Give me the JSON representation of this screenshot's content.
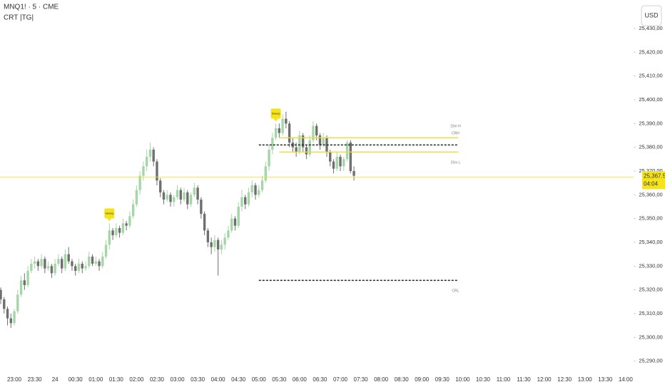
{
  "chart_data": {
    "type": "candlestick",
    "title": "MNQ1! · 5 · CME",
    "indicator": "CRT |TG|",
    "currency_button": "USD",
    "categories": [
      null,
      null,
      null,
      null,
      "23:00",
      null,
      null,
      null,
      null,
      null,
      "23:30",
      null,
      null,
      null,
      null,
      null,
      "24",
      null,
      null,
      null,
      null,
      null,
      "00:30",
      null,
      null,
      null,
      null,
      null,
      "01:00",
      null,
      null,
      null,
      null,
      null,
      "01:30",
      null,
      null,
      null,
      null,
      null,
      "02:00",
      null,
      null,
      null,
      null,
      null,
      "02:30",
      null,
      null,
      null,
      null,
      null,
      "03:00",
      null,
      null,
      null,
      null,
      null,
      "03:30",
      null,
      null,
      null,
      null,
      null,
      "04:00",
      null,
      null,
      null,
      null,
      null,
      "04:30",
      null,
      null,
      null,
      null,
      null,
      "05:00",
      null,
      null,
      null,
      null,
      null,
      "05:30",
      null,
      null,
      null,
      null,
      null,
      "06:00",
      null,
      null,
      null,
      null,
      null,
      "06:30",
      null,
      null,
      null,
      null,
      null,
      "07:00",
      null,
      null,
      null,
      null,
      null,
      "07:30",
      null,
      null,
      null,
      null,
      null,
      "08:00",
      null,
      null,
      null,
      null,
      null,
      "08:30",
      null,
      null,
      null,
      null,
      null,
      "09:00",
      null,
      null,
      null,
      null,
      null,
      "09:30",
      null,
      null,
      null,
      null,
      null,
      "10:00",
      null,
      null,
      null,
      null,
      null,
      "10:30",
      null,
      null,
      null,
      null,
      null,
      "11:00",
      null,
      null,
      null,
      null,
      null,
      "11:30",
      null,
      null,
      null,
      null,
      null,
      "12:00",
      null,
      null,
      null,
      null,
      null,
      "12:30",
      null,
      null,
      null,
      null,
      null,
      "13:00",
      null,
      null,
      null,
      null,
      null,
      "13:30",
      null,
      null,
      null,
      null,
      null,
      "14:00"
    ],
    "open": [
      25320,
      25316,
      25312,
      25308,
      25306,
      25311,
      25318,
      25324,
      25322,
      25328,
      25331,
      25332,
      25330,
      25333,
      25329,
      25330,
      25327,
      25331,
      25333,
      25329,
      25335,
      25332,
      25330,
      25328,
      25331,
      25329,
      25330,
      25334,
      25331,
      25332,
      25330,
      25334,
      25339,
      25345,
      25343,
      25346,
      25344,
      25348,
      25347,
      25351,
      25356,
      25362,
      25368,
      25372,
      25376,
      25379,
      25374,
      25366,
      25361,
      25358,
      25360,
      25357,
      25359,
      25362,
      25358,
      25361,
      25356,
      25360,
      25363,
      25358,
      25352,
      25345,
      25340,
      25338,
      25341,
      25337,
      25339,
      25342,
      25345,
      25350,
      25347,
      25355,
      25359,
      25356,
      25361,
      25364,
      25360,
      25362,
      25366,
      25372,
      25379,
      25384,
      25388,
      25386,
      25392,
      25390,
      25382,
      25380,
      25378,
      25385,
      25380,
      25377,
      25383,
      25389,
      25385,
      25381,
      25384,
      25378,
      25374,
      25371,
      25376,
      25372,
      25375,
      25382,
      25370,
      null,
      null,
      null,
      null,
      null,
      null,
      null,
      null,
      null,
      null,
      null,
      null,
      null,
      null,
      null,
      null,
      null,
      null,
      null,
      null,
      null,
      null,
      null,
      null,
      null,
      null,
      null,
      null,
      null,
      null,
      null,
      null,
      null,
      null,
      null,
      null,
      null,
      null,
      null,
      null,
      null,
      null,
      null,
      null,
      null,
      null,
      null,
      null,
      null,
      null,
      null,
      null,
      null,
      null,
      null,
      null,
      null,
      null,
      null,
      null,
      null,
      null,
      null,
      null,
      null,
      null,
      null,
      null,
      null,
      null,
      null,
      null,
      null,
      null,
      null,
      null,
      null,
      null,
      null,
      null
    ],
    "high": [
      25321,
      25317,
      25313,
      25310,
      25312,
      25320,
      25326,
      25327,
      25330,
      25333,
      25334,
      25333,
      25335,
      25334,
      25332,
      25331,
      25333,
      25335,
      25334,
      25337,
      25338,
      25333,
      25331,
      25333,
      25332,
      25332,
      25336,
      25335,
      25334,
      25333,
      25336,
      25341,
      25348,
      25346,
      25348,
      25347,
      25350,
      25349,
      25353,
      25358,
      25364,
      25370,
      25374,
      25379,
      25382,
      25380,
      25375,
      25367,
      25362,
      25362,
      25361,
      25360,
      25364,
      25363,
      25363,
      25362,
      25361,
      25365,
      25364,
      25359,
      25353,
      25346,
      25342,
      25343,
      25342,
      25341,
      25344,
      25347,
      25352,
      25351,
      25357,
      25362,
      25360,
      25363,
      25366,
      25365,
      25364,
      25368,
      25374,
      25381,
      25386,
      25390,
      25390,
      25394,
      25395,
      25391,
      25384,
      25382,
      25387,
      25386,
      25381,
      25385,
      25391,
      25390,
      25386,
      25386,
      25385,
      25379,
      25375,
      25378,
      25377,
      25376,
      25383,
      25383,
      25372,
      null,
      null,
      null,
      null,
      null,
      null,
      null,
      null,
      null,
      null,
      null,
      null,
      null,
      null,
      null,
      null,
      null,
      null,
      null,
      null,
      null,
      null,
      null,
      null,
      null,
      null,
      null,
      null,
      null,
      null,
      null,
      null,
      null,
      null,
      null,
      null,
      null,
      null,
      null,
      null,
      null,
      null,
      null,
      null,
      null,
      null,
      null,
      null,
      null,
      null,
      null,
      null,
      null,
      null,
      null,
      null,
      null,
      null,
      null,
      null,
      null,
      null,
      null,
      null,
      null,
      null,
      null,
      null,
      null,
      null,
      null,
      null,
      null,
      null,
      null,
      null,
      null,
      null,
      null,
      null
    ],
    "low": [
      25314,
      25310,
      25305,
      25304,
      25305,
      25310,
      25317,
      25320,
      25321,
      25327,
      25329,
      25328,
      25329,
      25327,
      25328,
      25325,
      25326,
      25330,
      25327,
      25328,
      25331,
      25328,
      25326,
      25327,
      25327,
      25328,
      25329,
      25330,
      25330,
      25328,
      25329,
      25333,
      25337,
      25341,
      25342,
      25342,
      25343,
      25345,
      25346,
      25350,
      25355,
      25360,
      25366,
      25370,
      25374,
      25372,
      25364,
      25359,
      25356,
      25357,
      25355,
      25355,
      25358,
      25356,
      25357,
      25354,
      25355,
      25359,
      25356,
      25350,
      25343,
      25338,
      25335,
      25336,
      25326,
      25335,
      25337,
      25341,
      25344,
      25345,
      25346,
      25353,
      25354,
      25355,
      25359,
      25358,
      25359,
      25361,
      25365,
      25370,
      25377,
      25383,
      25384,
      25385,
      25388,
      25380,
      25378,
      25376,
      25377,
      25378,
      25375,
      25376,
      25382,
      25383,
      25379,
      25380,
      25376,
      25372,
      25369,
      25370,
      25370,
      25370,
      25374,
      25369,
      25366,
      null,
      null,
      null,
      null,
      null,
      null,
      null,
      null,
      null,
      null,
      null,
      null,
      null,
      null,
      null,
      null,
      null,
      null,
      null,
      null,
      null,
      null,
      null,
      null,
      null,
      null,
      null,
      null,
      null,
      null,
      null,
      null,
      null,
      null,
      null,
      null,
      null,
      null,
      null,
      null,
      null,
      null,
      null,
      null,
      null,
      null,
      null,
      null,
      null,
      null,
      null,
      null,
      null,
      null,
      null,
      null,
      null,
      null,
      null,
      null,
      null,
      null,
      null,
      null,
      null,
      null,
      null,
      null,
      null,
      null,
      null,
      null,
      null,
      null,
      null,
      null,
      null,
      null,
      null,
      null
    ],
    "close": [
      25316,
      25312,
      25308,
      25306,
      25311,
      25318,
      25324,
      25322,
      25328,
      25331,
      25332,
      25330,
      25333,
      25329,
      25330,
      25327,
      25331,
      25333,
      25329,
      25335,
      25332,
      25330,
      25328,
      25331,
      25329,
      25330,
      25334,
      25331,
      25332,
      25330,
      25334,
      25339,
      25345,
      25343,
      25346,
      25344,
      25348,
      25347,
      25351,
      25356,
      25362,
      25368,
      25372,
      25376,
      25379,
      25374,
      25366,
      25361,
      25358,
      25360,
      25357,
      25359,
      25362,
      25358,
      25361,
      25356,
      25360,
      25363,
      25358,
      25352,
      25345,
      25340,
      25338,
      25341,
      25337,
      25339,
      25342,
      25345,
      25350,
      25347,
      25355,
      25359,
      25356,
      25361,
      25364,
      25360,
      25362,
      25366,
      25372,
      25379,
      25384,
      25388,
      25386,
      25392,
      25390,
      25382,
      25380,
      25378,
      25385,
      25380,
      25377,
      25383,
      25389,
      25385,
      25381,
      25384,
      25378,
      25374,
      25371,
      25376,
      25372,
      25375,
      25382,
      25370,
      25368,
      null,
      null,
      null,
      null,
      null,
      null,
      null,
      null,
      null,
      null,
      null,
      null,
      null,
      null,
      null,
      null,
      null,
      null,
      null,
      null,
      null,
      null,
      null,
      null,
      null,
      null,
      null,
      null,
      null,
      null,
      null,
      null,
      null,
      null,
      null,
      null,
      null,
      null,
      null,
      null,
      null,
      null,
      null,
      null,
      null,
      null,
      null,
      null,
      null,
      null,
      null,
      null,
      null,
      null,
      null,
      null,
      null,
      null,
      null,
      null,
      null,
      null,
      null,
      null,
      null,
      null,
      null,
      null,
      null,
      null,
      null,
      null,
      null,
      null,
      null,
      null,
      null,
      null,
      null,
      null
    ],
    "up_color": "#a5d6a7",
    "down_color": "#6f6f6f",
    "ylim": [
      25286,
      25442
    ],
    "yticks": [
      {
        "value": 25290,
        "label": "25,290,00"
      },
      {
        "value": 25300,
        "label": "25,300,00"
      },
      {
        "value": 25310,
        "label": "25,310,00"
      },
      {
        "value": 25320,
        "label": "25,320,00"
      },
      {
        "value": 25330,
        "label": "25,330,00"
      },
      {
        "value": 25340,
        "label": "25,340,00"
      },
      {
        "value": 25350,
        "label": "25,350,00"
      },
      {
        "value": 25360,
        "label": "25,360,00"
      },
      {
        "value": 25370,
        "label": "25,370,00"
      },
      {
        "value": 25380,
        "label": "25,380,00"
      },
      {
        "value": 25390,
        "label": "25,390,00"
      },
      {
        "value": 25400,
        "label": "25,400,00"
      },
      {
        "value": 25410,
        "label": "25,410,00"
      },
      {
        "value": 25420,
        "label": "25,420,00"
      },
      {
        "value": 25430,
        "label": "25,430,00"
      }
    ],
    "grid": false,
    "last_price": {
      "value": 25367.5,
      "label": "25,367.50",
      "color": "#f5e31b"
    },
    "countdown": "04:04",
    "levels": [
      {
        "name": "15m H",
        "value": 25384,
        "color": "#f0dc28",
        "style": "solid",
        "from": "05:30",
        "to": "10:00"
      },
      {
        "name": "CRH",
        "value": 25381,
        "color": "#222222",
        "style": "dashed",
        "from": "05:00",
        "to": "10:00"
      },
      {
        "name": "15m L",
        "value": 25378,
        "color": "#f0dc28",
        "style": "solid",
        "from": "05:30",
        "to": "10:00"
      },
      {
        "name": "CRL",
        "value": 25324,
        "color": "#222222",
        "style": "dashed",
        "from": "05:00",
        "to": "10:00"
      }
    ],
    "markers": [
      {
        "label": "Sweep",
        "at": 32,
        "color": "#f5e31b"
      },
      {
        "label": "Sweep",
        "at": 81,
        "color": "#f5e31b"
      }
    ]
  }
}
